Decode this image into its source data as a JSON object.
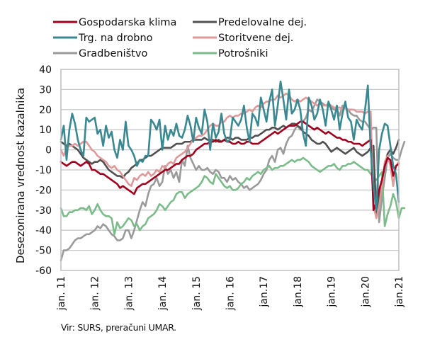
{
  "chart_data": {
    "type": "line",
    "title": "",
    "xlabel": "",
    "ylabel": "Desezonirana vrednost kazalnika",
    "ylim": [
      -60,
      40
    ],
    "yticks": [
      40,
      30,
      20,
      10,
      0,
      -10,
      -20,
      -30,
      -40,
      -50,
      -60
    ],
    "grid": true,
    "legend_position": "top",
    "x_start": "2011-01",
    "x_end": "2021-01",
    "xtick_labels": [
      "jan. 11",
      "jan. 12",
      "jan. 13",
      "jan. 14",
      "jan. 15",
      "jan. 16",
      "jan.17",
      "jan.18",
      "jan.19",
      "jan.20",
      "jan.21"
    ],
    "series": [
      {
        "name": "Gospodarska klima",
        "color": "#a0001e",
        "values": [
          -6,
          -7,
          -8,
          -7,
          -6,
          -6,
          -7,
          -8,
          -7,
          -6,
          -7,
          -10,
          -10,
          -11,
          -12,
          -12,
          -13,
          -14,
          -15,
          -16,
          -17,
          -19,
          -18,
          -19,
          -20,
          -21,
          -22,
          -19,
          -18,
          -17,
          -17,
          -16,
          -15,
          -14,
          -13,
          -12,
          -11,
          -10,
          -10,
          -9,
          -8,
          -7,
          -7,
          -5,
          -4,
          -3,
          -3,
          -2,
          0,
          1,
          2,
          3,
          3,
          4,
          4,
          5,
          4,
          4,
          5,
          4,
          4,
          3,
          3,
          4,
          3,
          3,
          4,
          4,
          3,
          3,
          3,
          4,
          5,
          6,
          7,
          8,
          9,
          8,
          9,
          10,
          11,
          12,
          12,
          12,
          13,
          14,
          14,
          13,
          12,
          11,
          10,
          11,
          10,
          9,
          8,
          9,
          8,
          7,
          6,
          6,
          5,
          5,
          4,
          4,
          3,
          3,
          3,
          2,
          3,
          4,
          5,
          -30,
          -26,
          -20,
          -15,
          -8,
          -4,
          -5,
          -13,
          -8,
          -7
        ]
      },
      {
        "name": "Predelovalne dej.",
        "color": "#505050",
        "values": [
          4,
          3,
          2,
          3,
          2,
          1,
          0,
          -2,
          -4,
          -5,
          -6,
          -7,
          -6,
          -6,
          -5,
          -6,
          -8,
          -10,
          -11,
          -12,
          -13,
          -13,
          -14,
          -12,
          -11,
          -9,
          -8,
          -7,
          -5,
          -5,
          -4,
          -3,
          -3,
          -2,
          -1,
          0,
          1,
          1,
          1,
          1,
          2,
          3,
          3,
          3,
          4,
          4,
          4,
          5,
          5,
          5,
          5,
          6,
          5,
          5,
          5,
          4,
          5,
          4,
          5,
          6,
          6,
          5,
          6,
          6,
          5,
          5,
          5,
          6,
          6,
          7,
          7,
          8,
          9,
          10,
          10,
          11,
          11,
          10,
          11,
          12,
          11,
          12,
          13,
          13,
          12,
          11,
          9,
          8,
          7,
          5,
          4,
          3,
          3,
          4,
          3,
          1,
          -1,
          0,
          1,
          0,
          -1,
          -2,
          -1,
          0,
          1,
          -1,
          -2,
          -3,
          -2,
          -1,
          1,
          2,
          -32,
          -24,
          -16,
          -8,
          -2,
          0,
          -2,
          1,
          5
        ]
      },
      {
        "name": "Trg. na drobno",
        "color": "#3a8891",
        "values": [
          5,
          12,
          -5,
          10,
          18,
          13,
          5,
          0,
          -3,
          16,
          14,
          15,
          16,
          8,
          10,
          2,
          12,
          6,
          9,
          0,
          -4,
          5,
          0,
          14,
          2,
          0,
          -3,
          -8,
          -5,
          -6,
          -3,
          -3,
          15,
          13,
          10,
          15,
          0,
          12,
          5,
          10,
          7,
          13,
          7,
          6,
          10,
          17,
          12,
          4,
          16,
          11,
          8,
          20,
          14,
          0,
          13,
          6,
          9,
          18,
          8,
          4,
          5,
          16,
          14,
          12,
          15,
          22,
          11,
          4,
          18,
          16,
          12,
          26,
          20,
          14,
          24,
          30,
          12,
          22,
          34,
          25,
          15,
          30,
          18,
          20,
          25,
          20,
          8,
          2,
          26,
          22,
          15,
          18,
          25,
          20,
          12,
          24,
          20,
          15,
          22,
          10,
          18,
          24,
          16,
          14,
          5,
          15,
          12,
          10,
          20,
          32,
          0,
          -18,
          -30,
          0,
          8,
          13,
          12,
          2,
          -8,
          -12,
          -26
        ]
      },
      {
        "name": "Storitvene dej.",
        "color": "#e0999a",
        "values": [
          0,
          -3,
          1,
          2,
          2,
          3,
          2,
          3,
          4,
          4,
          2,
          0,
          -1,
          -3,
          -4,
          -5,
          -6,
          -8,
          -9,
          -8,
          -10,
          -11,
          -13,
          -15,
          -17,
          -18,
          -14,
          -15,
          -13,
          -12,
          -13,
          -11,
          -13,
          -12,
          -10,
          -11,
          -8,
          -9,
          -7,
          -6,
          -7,
          -4,
          -3,
          -2,
          -1,
          1,
          3,
          5,
          6,
          7,
          7,
          8,
          10,
          12,
          13,
          12,
          12,
          14,
          14,
          16,
          17,
          16,
          17,
          17,
          18,
          18,
          19,
          20,
          19,
          21,
          22,
          21,
          23,
          24,
          24,
          25,
          25,
          27,
          26,
          27,
          28,
          27,
          25,
          24,
          25,
          24,
          25,
          26,
          25,
          24,
          23,
          22,
          23,
          22,
          22,
          23,
          22,
          21,
          21,
          21,
          20,
          21,
          20,
          20,
          20,
          19,
          19,
          19,
          18,
          19,
          19,
          -28,
          -34,
          -28,
          -18,
          -6,
          -3,
          -8,
          -18,
          -8,
          -6
        ]
      },
      {
        "name": "Gradbeništvo",
        "color": "#9a9a9a",
        "values": [
          -55,
          -50,
          -50,
          -49,
          -47,
          -45,
          -44,
          -44,
          -43,
          -42,
          -42,
          -41,
          -40,
          -38,
          -39,
          -37,
          -38,
          -40,
          -42,
          -43,
          -45,
          -45,
          -44,
          -40,
          -40,
          -44,
          -40,
          -35,
          -30,
          -26,
          -28,
          -22,
          -18,
          -17,
          -14,
          -18,
          -16,
          -8,
          -12,
          -10,
          -14,
          -11,
          -16,
          -5,
          -8,
          2,
          -4,
          -7,
          -10,
          -8,
          -10,
          -10,
          -9,
          -11,
          -12,
          -10,
          -11,
          -14,
          -14,
          -16,
          -13,
          -15,
          -14,
          -16,
          -17,
          -19,
          -18,
          -20,
          -19,
          -18,
          -17,
          -15,
          -12,
          -10,
          -5,
          -3,
          -6,
          0,
          1,
          -2,
          3,
          6,
          7,
          10,
          12,
          10,
          14,
          16,
          20,
          19,
          22,
          25,
          24,
          23,
          22,
          22,
          21,
          20,
          20,
          17,
          22,
          21,
          20,
          18,
          17,
          17,
          15,
          14,
          14,
          12,
          10,
          11,
          11,
          -36,
          -24,
          -14,
          -4,
          -2,
          -4,
          -5,
          -5,
          0,
          4
        ]
      },
      {
        "name": "Potrošniki",
        "color": "#7cbc8a",
        "values": [
          -29,
          -33,
          -33,
          -31,
          -31,
          -30,
          -30,
          -29,
          -29,
          -30,
          -28,
          -32,
          -30,
          -27,
          -30,
          -32,
          -33,
          -33,
          -34,
          -42,
          -36,
          -39,
          -38,
          -36,
          -34,
          -35,
          -38,
          -37,
          -40,
          -38,
          -37,
          -34,
          -33,
          -32,
          -30,
          -27,
          -28,
          -30,
          -28,
          -26,
          -25,
          -22,
          -21,
          -21,
          -24,
          -22,
          -21,
          -20,
          -19,
          -18,
          -16,
          -13,
          -14,
          -16,
          -17,
          -12,
          -14,
          -16,
          -18,
          -19,
          -18,
          -20,
          -20,
          -19,
          -17,
          -16,
          -14,
          -15,
          -13,
          -12,
          -11,
          -12,
          -10,
          -9,
          -8,
          -10,
          -9,
          -9,
          -8,
          -8,
          -7,
          -6,
          -5,
          -6,
          -5,
          -5,
          -4,
          -5,
          -6,
          -8,
          -9,
          -10,
          -11,
          -10,
          -9,
          -8,
          -8,
          -7,
          -9,
          -10,
          -8,
          -8,
          -7,
          -7,
          -6,
          -7,
          -8,
          -9,
          -10,
          -10,
          -12,
          -14,
          -15,
          -13,
          -11,
          -38,
          -32,
          -28,
          -22,
          -26,
          -34,
          -29,
          -29
        ]
      }
    ]
  },
  "source_note": "Vir: SURS, preračuni UMAR."
}
